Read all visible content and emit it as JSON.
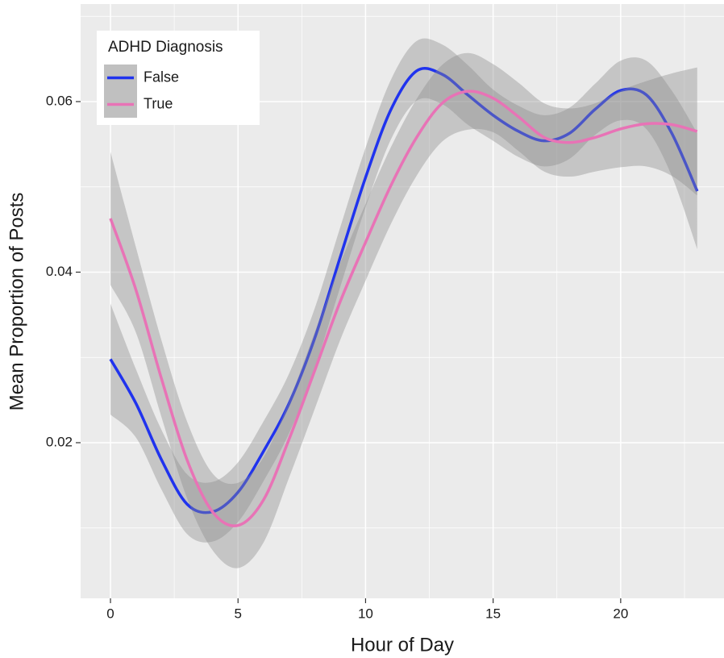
{
  "chart_data": {
    "type": "smooth_line",
    "x_label": "Hour of Day",
    "y_label": "Mean Proportion of Posts",
    "x": [
      0,
      1,
      2,
      3,
      4,
      5,
      6,
      7,
      8,
      9,
      10,
      11,
      12,
      13,
      14,
      15,
      16,
      17,
      18,
      19,
      20,
      21,
      22,
      23
    ],
    "series": [
      {
        "name": "False",
        "color": "#2033ee",
        "values": [
          0.0298,
          0.0246,
          0.018,
          0.0128,
          0.0119,
          0.0142,
          0.019,
          0.0246,
          0.0322,
          0.0417,
          0.0511,
          0.0591,
          0.0636,
          0.0632,
          0.0608,
          0.0584,
          0.0565,
          0.0554,
          0.0563,
          0.0591,
          0.0613,
          0.0608,
          0.0563,
          0.0495
        ],
        "lower": [
          0.0233,
          0.0206,
          0.0145,
          0.0093,
          0.0084,
          0.0107,
          0.0155,
          0.0211,
          0.0287,
          0.0382,
          0.0476,
          0.0556,
          0.0601,
          0.0597,
          0.0573,
          0.0554,
          0.0535,
          0.0524,
          0.0533,
          0.0561,
          0.0578,
          0.0568,
          0.0513,
          0.0427
        ],
        "upper": [
          0.0363,
          0.0286,
          0.0215,
          0.0163,
          0.0154,
          0.0177,
          0.0225,
          0.0281,
          0.0357,
          0.0452,
          0.0546,
          0.0626,
          0.0671,
          0.0667,
          0.0643,
          0.0614,
          0.0595,
          0.0584,
          0.0593,
          0.0621,
          0.0648,
          0.0648,
          0.0613,
          0.0563
        ]
      },
      {
        "name": "True",
        "color": "#e873b6",
        "values": [
          0.0463,
          0.0379,
          0.0275,
          0.018,
          0.0119,
          0.0103,
          0.0133,
          0.0204,
          0.0284,
          0.0365,
          0.0435,
          0.0502,
          0.0558,
          0.0598,
          0.0612,
          0.0604,
          0.0582,
          0.0558,
          0.0552,
          0.0558,
          0.0568,
          0.0574,
          0.0573,
          0.0565
        ],
        "lower": [
          0.0385,
          0.0329,
          0.023,
          0.0135,
          0.0074,
          0.0053,
          0.0083,
          0.0159,
          0.0239,
          0.032,
          0.039,
          0.0457,
          0.0513,
          0.0553,
          0.0567,
          0.0564,
          0.0542,
          0.0518,
          0.0512,
          0.0518,
          0.0523,
          0.0524,
          0.0513,
          0.049
        ],
        "upper": [
          0.0541,
          0.0429,
          0.032,
          0.0225,
          0.0164,
          0.0153,
          0.0183,
          0.0249,
          0.0329,
          0.041,
          0.048,
          0.0547,
          0.0603,
          0.0643,
          0.0657,
          0.0644,
          0.0622,
          0.0598,
          0.0592,
          0.0598,
          0.0613,
          0.0624,
          0.0633,
          0.064
        ]
      }
    ],
    "band_color": "#8c8c8c",
    "legend_title": "ADHD Diagnosis",
    "legend_position": "top-left",
    "xlim": [
      -1.17,
      24.05
    ],
    "ylim": [
      0.00175,
      0.07144
    ],
    "xticks": [
      0,
      5,
      10,
      15,
      20
    ],
    "yticks": [
      0.02,
      0.04,
      0.06
    ],
    "x_minor_grid": [
      2.5,
      7.5,
      12.5,
      17.5,
      22.5
    ],
    "y_minor_grid": [
      0.01,
      0.03,
      0.05,
      0.07
    ],
    "grid": true
  }
}
